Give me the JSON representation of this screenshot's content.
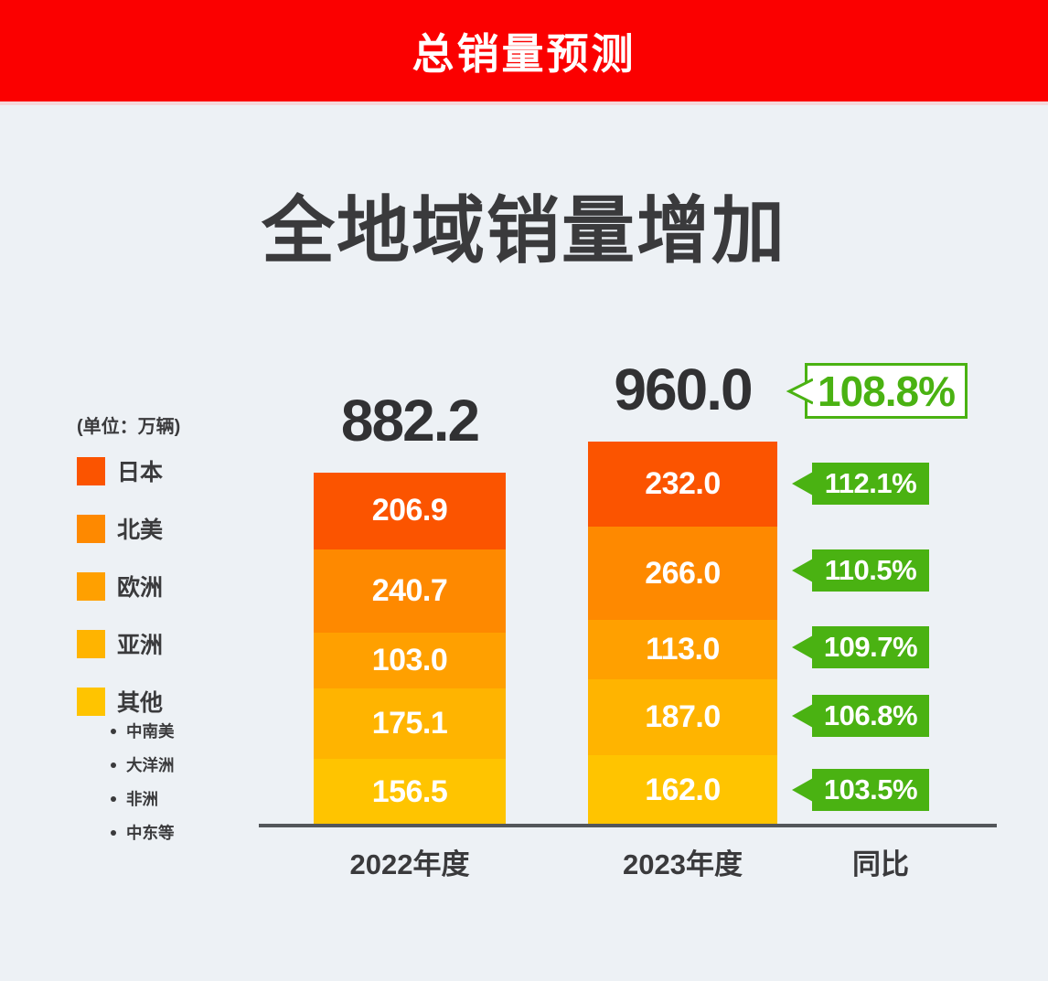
{
  "banner": {
    "title": "总销量预测",
    "bg": "#FB0000"
  },
  "headline": "全地域销量增加",
  "page_bg": "#EDF1F5",
  "legend": {
    "unit": "(单位：万辆)",
    "items": [
      "日本",
      "北美",
      "欧洲",
      "亚洲",
      "其他"
    ],
    "other_breakdown": [
      "中南美",
      "大洋洲",
      "非洲",
      "中东等"
    ]
  },
  "chart_data": {
    "type": "bar",
    "stacked": true,
    "title": "全地域销量增加",
    "unit_note": "(单位：万辆)",
    "categories": [
      "2022年度",
      "2023年度"
    ],
    "series": [
      {
        "name": "日本",
        "values": [
          206.9,
          232.0
        ],
        "color": "#FB5400"
      },
      {
        "name": "北美",
        "values": [
          240.7,
          266.0
        ],
        "color": "#FE8900"
      },
      {
        "name": "欧洲",
        "values": [
          103.0,
          113.0
        ],
        "color": "#FFA000"
      },
      {
        "name": "亚洲",
        "values": [
          175.1,
          187.0
        ],
        "color": "#FFB400"
      },
      {
        "name": "其他",
        "values": [
          156.5,
          162.0
        ],
        "color": "#FFC400"
      }
    ],
    "totals": [
      882.2,
      960.0
    ],
    "yoy": {
      "label": "同比",
      "total_pct": 108.8,
      "pct_by_region": [
        112.1,
        110.5,
        109.7,
        106.8,
        103.5
      ]
    },
    "badge_color": "#4AB212",
    "legend_position": "left",
    "stack_order_top_to_bottom": [
      "日本",
      "北美",
      "欧洲",
      "亚洲",
      "其他"
    ]
  },
  "axis": {
    "labels": [
      "2022年度",
      "2023年度",
      "同比"
    ]
  }
}
